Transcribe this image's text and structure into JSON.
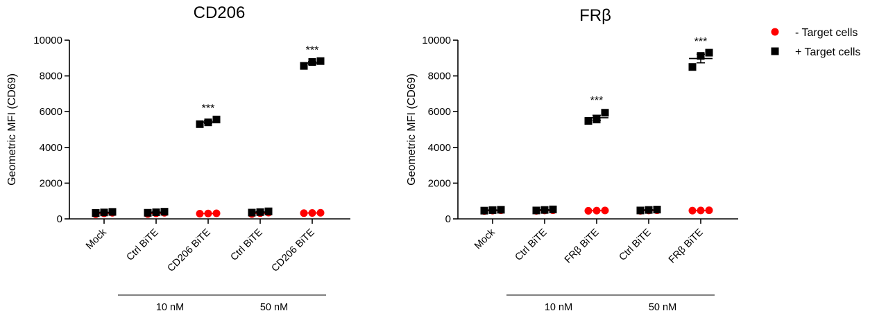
{
  "chart_data": [
    {
      "type": "scatter",
      "title": "CD206",
      "ylabel": "Geometric MFI (CD69)",
      "ylim": [
        0,
        10000
      ],
      "yticks": [
        0,
        2000,
        4000,
        6000,
        8000,
        10000
      ],
      "categories": [
        "Mock",
        "Ctrl BiTE",
        "CD206 BiTE",
        "Ctrl BiTE",
        "CD206 BiTE"
      ],
      "groups": [
        {
          "label": "10 nM",
          "categories": [
            1,
            2
          ]
        },
        {
          "label": "50 nM",
          "categories": [
            3,
            4
          ]
        }
      ],
      "series": [
        {
          "name": "- Target cells",
          "color": "#ff0000",
          "marker": "circle",
          "values": [
            [
              260,
              310,
              340
            ],
            [
              270,
              310,
              340
            ],
            [
              290,
              300,
              310
            ],
            [
              270,
              320,
              350
            ],
            [
              320,
              330,
              340
            ]
          ]
        },
        {
          "name": "+ Target cells",
          "color": "#000000",
          "marker": "square",
          "values": [
            [
              330,
              360,
              390
            ],
            [
              340,
              370,
              400
            ],
            [
              5300,
              5400,
              5560
            ],
            [
              350,
              380,
              420
            ],
            [
              8560,
              8780,
              8830
            ]
          ]
        }
      ],
      "significance": [
        {
          "category": 2,
          "label": "***",
          "y": 5600
        },
        {
          "category": 4,
          "label": "***",
          "y": 8850
        }
      ]
    },
    {
      "type": "scatter",
      "title": "FRβ",
      "ylabel": "Geometric MFI (CD69)",
      "ylim": [
        0,
        10000
      ],
      "yticks": [
        0,
        2000,
        4000,
        6000,
        8000,
        10000
      ],
      "categories": [
        "Mock",
        "Ctrl BiTE",
        "FRβ BiTE",
        "Ctrl BiTE",
        "FRβ BiTE"
      ],
      "groups": [
        {
          "label": "10 nM",
          "categories": [
            1,
            2
          ]
        },
        {
          "label": "50 nM",
          "categories": [
            3,
            4
          ]
        }
      ],
      "series": [
        {
          "name": "- Target cells",
          "color": "#ff0000",
          "marker": "circle",
          "values": [
            [
              440,
              460,
              480
            ],
            [
              450,
              470,
              480
            ],
            [
              450,
              460,
              470
            ],
            [
              450,
              470,
              480
            ],
            [
              460,
              470,
              480
            ]
          ]
        },
        {
          "name": "+ Target cells",
          "color": "#000000",
          "marker": "square",
          "values": [
            [
              460,
              490,
              510
            ],
            [
              470,
              500,
              530
            ],
            [
              5480,
              5560,
              5940
            ],
            [
              470,
              500,
              520
            ],
            [
              8500,
              9120,
              9300
            ]
          ]
        }
      ],
      "significance": [
        {
          "category": 2,
          "label": "***",
          "y": 6050
        },
        {
          "category": 4,
          "label": "***",
          "y": 9350
        }
      ]
    }
  ],
  "legend": {
    "position": "top-right",
    "items": [
      {
        "label": "- Target cells",
        "color": "#ff0000",
        "marker": "circle"
      },
      {
        "label": "+ Target cells",
        "color": "#000000",
        "marker": "square"
      }
    ]
  }
}
